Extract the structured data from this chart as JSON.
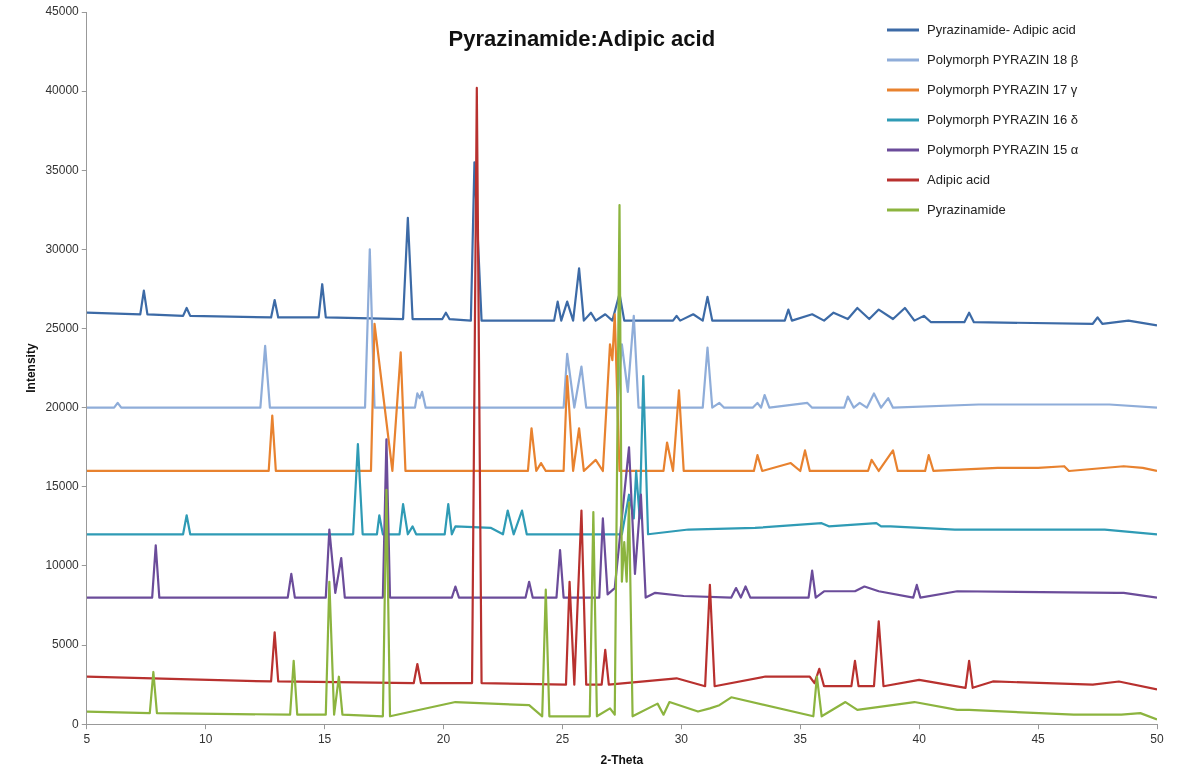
{
  "chart_data": {
    "type": "line",
    "title": "Pyrazinamide:Adipic acid",
    "xlabel": "2-Theta",
    "ylabel": "Intensity",
    "xlim": [
      5,
      50
    ],
    "xticks": [
      5,
      10,
      15,
      20,
      25,
      30,
      35,
      40,
      45,
      50
    ],
    "ylim": [
      0,
      45000
    ],
    "yticks": [
      0,
      5000,
      10000,
      15000,
      20000,
      25000,
      30000,
      35000,
      40000,
      45000
    ],
    "grid": false,
    "legend": "top right",
    "marker": "none",
    "line_style": "solid",
    "series": [
      {
        "name": "Pyrazinamide- Adipic acid",
        "color": "#3c6aa6",
        "x": [
          5,
          7.25,
          7.4,
          7.55,
          9.05,
          9.2,
          9.35,
          12.75,
          12.9,
          13.05,
          14.75,
          14.9,
          15.05,
          18.3,
          18.5,
          18.7,
          19.95,
          20.1,
          20.25,
          21.15,
          21.3,
          21.6,
          24.65,
          24.8,
          24.95,
          25.2,
          25.45,
          25.7,
          25.9,
          26.2,
          26.4,
          26.8,
          27.1,
          27.4,
          27.6,
          29.65,
          29.8,
          29.95,
          30.5,
          30.9,
          31.1,
          31.3,
          34.35,
          34.5,
          34.65,
          35.5,
          36.0,
          36.4,
          37.0,
          37.4,
          37.9,
          38.3,
          38.9,
          39.4,
          39.8,
          40.2,
          40.5,
          41.9,
          42.1,
          42.3,
          47.3,
          47.5,
          47.7,
          48.8,
          50
        ],
        "values": [
          26000,
          25900,
          27400,
          25900,
          25800,
          26300,
          25800,
          25700,
          26800,
          25700,
          25700,
          27800,
          25700,
          25600,
          32000,
          25600,
          25600,
          26000,
          25600,
          25500,
          35500,
          25500,
          25500,
          26700,
          25500,
          26700,
          25500,
          28800,
          25500,
          26000,
          25500,
          25900,
          25500,
          27200,
          25500,
          25500,
          25800,
          25500,
          25900,
          25500,
          27000,
          25500,
          25500,
          26200,
          25500,
          25900,
          25500,
          26000,
          25600,
          26300,
          25600,
          26200,
          25600,
          26300,
          25500,
          25800,
          25400,
          25400,
          26000,
          25400,
          25300,
          25700,
          25300,
          25500,
          25200
        ]
      },
      {
        "name": "Polymorph PYRAZIN 18 β",
        "color": "#8fadd9",
        "x": [
          5,
          6.15,
          6.3,
          6.45,
          12.3,
          12.5,
          12.7,
          16.7,
          16.9,
          17.1,
          18.8,
          18.9,
          19.0,
          19.1,
          19.25,
          25.05,
          25.2,
          25.5,
          25.8,
          26.0,
          27.3,
          27.5,
          27.75,
          28.0,
          28.2,
          30.9,
          31.1,
          31.3,
          31.6,
          31.8,
          33.0,
          33.2,
          33.35,
          33.5,
          33.7,
          35.3,
          35.5,
          36.85,
          37.0,
          37.25,
          37.5,
          37.8,
          38.1,
          38.4,
          38.7,
          38.9,
          42.5,
          46.9,
          48.0,
          50
        ],
        "values": [
          20000,
          20000,
          20300,
          20000,
          20000,
          23900,
          20000,
          20000,
          30000,
          20000,
          20000,
          20900,
          20600,
          21000,
          20000,
          20000,
          23400,
          20000,
          22600,
          20000,
          20000,
          24000,
          21000,
          25800,
          20000,
          20000,
          23800,
          20000,
          20300,
          20000,
          20000,
          20300,
          20000,
          20800,
          20000,
          20300,
          20000,
          20000,
          20700,
          20000,
          20300,
          20000,
          20900,
          20000,
          20600,
          20000,
          20200,
          20200,
          20200,
          20000
        ]
      },
      {
        "name": "Polymorph PYRAZIN 17 γ",
        "color": "#e8822f",
        "x": [
          5,
          12.65,
          12.8,
          12.95,
          16.95,
          17.1,
          17.85,
          18.2,
          18.4,
          23.55,
          23.7,
          23.9,
          24.1,
          24.3,
          25.05,
          25.2,
          25.45,
          25.7,
          25.9,
          26.4,
          26.7,
          27.0,
          27.1,
          27.2,
          27.4,
          29.25,
          29.4,
          29.65,
          29.9,
          30.1,
          33.05,
          33.2,
          33.4,
          34.6,
          35.0,
          35.2,
          35.4,
          37.85,
          38.0,
          38.3,
          38.9,
          39.1,
          40.25,
          40.4,
          40.6,
          43.3,
          45.0,
          46.1,
          46.3,
          48.6,
          49.4,
          50
        ],
        "values": [
          16000,
          16000,
          19500,
          16000,
          16000,
          25300,
          16000,
          23500,
          16000,
          16000,
          18700,
          16000,
          16500,
          16000,
          16000,
          22000,
          16000,
          18700,
          16000,
          16700,
          16000,
          24000,
          23000,
          25900,
          16000,
          16000,
          17800,
          16000,
          21100,
          16000,
          16000,
          17000,
          16000,
          16500,
          16000,
          17300,
          16000,
          16000,
          16700,
          16000,
          17300,
          16000,
          16000,
          17000,
          16000,
          16200,
          16200,
          16300,
          16000,
          16300,
          16200,
          16000
        ]
      },
      {
        "name": "Polymorph PYRAZIN 16 δ",
        "color": "#2f9bb5",
        "x": [
          5,
          9.05,
          9.2,
          9.35,
          16.2,
          16.4,
          16.6,
          17.2,
          17.3,
          17.45,
          18.15,
          18.3,
          18.5,
          18.7,
          18.85,
          20.05,
          20.2,
          20.35,
          20.5,
          22.0,
          22.5,
          22.7,
          22.95,
          23.3,
          23.5,
          27.5,
          27.8,
          28.0,
          28.1,
          28.25,
          28.4,
          28.6,
          30.3,
          33.1,
          35.9,
          36.2,
          38.2,
          38.4,
          38.8,
          41.5,
          47.8,
          50
        ],
        "values": [
          12000,
          12000,
          13200,
          12000,
          12000,
          17700,
          12000,
          12000,
          13200,
          12000,
          12000,
          13900,
          12000,
          12500,
          12000,
          12000,
          13900,
          12000,
          12500,
          12400,
          12000,
          13500,
          12000,
          13500,
          12000,
          12000,
          14500,
          13000,
          16000,
          13000,
          22000,
          12000,
          12300,
          12400,
          12700,
          12500,
          12700,
          12500,
          12500,
          12300,
          12300,
          12000
        ]
      },
      {
        "name": "Polymorph PYRAZIN 15 α",
        "color": "#6b4c9a",
        "x": [
          5,
          7.75,
          7.9,
          8.05,
          13.45,
          13.6,
          13.75,
          15.05,
          15.2,
          15.45,
          15.7,
          15.85,
          17.45,
          17.6,
          17.75,
          20.35,
          20.5,
          20.65,
          23.45,
          23.6,
          23.75,
          24.75,
          24.9,
          25.05,
          26.55,
          26.7,
          26.9,
          27.2,
          27.8,
          28.05,
          28.3,
          28.5,
          28.9,
          30.1,
          32.1,
          32.3,
          32.5,
          32.7,
          32.9,
          35.35,
          35.5,
          35.65,
          36.0,
          37.3,
          37.7,
          38.3,
          39.75,
          39.9,
          40.05,
          41.6,
          48.3,
          48.6,
          50
        ],
        "values": [
          8000,
          8000,
          11300,
          8000,
          8000,
          9500,
          8000,
          8000,
          12300,
          8300,
          10500,
          8000,
          8000,
          18000,
          8000,
          8000,
          8700,
          8000,
          8000,
          9000,
          8000,
          8000,
          11000,
          8000,
          8000,
          13000,
          8200,
          8600,
          17500,
          9500,
          14500,
          8000,
          8300,
          8100,
          8000,
          8600,
          8000,
          8700,
          8000,
          8000,
          9700,
          8000,
          8400,
          8400,
          8700,
          8400,
          8000,
          8800,
          8000,
          8400,
          8300,
          8300,
          8000
        ]
      },
      {
        "name": "Adipic acid",
        "color": "#b8312f",
        "x": [
          5,
          12.75,
          12.9,
          13.05,
          18.75,
          18.9,
          19.05,
          21.2,
          21.4,
          21.6,
          25.15,
          25.3,
          25.5,
          25.8,
          26.0,
          26.65,
          26.8,
          26.95,
          29.8,
          31.0,
          31.2,
          31.4,
          33.5,
          35.4,
          35.6,
          35.8,
          36.0,
          37.15,
          37.3,
          37.45,
          38.1,
          38.3,
          38.5,
          40.0,
          41.95,
          42.1,
          42.25,
          43.1,
          47.3,
          48.4,
          50
        ],
        "values": [
          3000,
          2700,
          5800,
          2700,
          2600,
          3800,
          2600,
          2600,
          40200,
          2600,
          2500,
          9000,
          2500,
          13500,
          2500,
          2500,
          4700,
          2500,
          2900,
          2400,
          8800,
          2400,
          3000,
          3000,
          2600,
          3500,
          2400,
          2400,
          4000,
          2400,
          2400,
          6500,
          2400,
          2800,
          2300,
          4000,
          2300,
          2700,
          2500,
          2700,
          2200
        ]
      },
      {
        "name": "Pyrazinamide",
        "color": "#8cb43f",
        "x": [
          5,
          7.65,
          7.8,
          7.95,
          13.55,
          13.7,
          13.85,
          15.05,
          15.2,
          15.4,
          15.6,
          15.75,
          17.45,
          17.6,
          17.75,
          20.5,
          23.6,
          24.15,
          24.3,
          24.45,
          26.15,
          26.3,
          26.45,
          27.0,
          27.2,
          27.4,
          27.5,
          27.6,
          27.7,
          27.8,
          27.95,
          29.0,
          29.25,
          29.5,
          30.7,
          31.2,
          31.6,
          32.1,
          35.55,
          35.7,
          35.9,
          36.9,
          37.4,
          39.8,
          41.6,
          42.1,
          46.5,
          48.5,
          49.3,
          50
        ],
        "values": [
          800,
          700,
          3300,
          700,
          600,
          4000,
          600,
          600,
          9000,
          600,
          3000,
          600,
          500,
          14800,
          500,
          1400,
          1200,
          500,
          8500,
          500,
          500,
          13400,
          500,
          1000,
          600,
          32800,
          9000,
          11500,
          9000,
          14000,
          500,
          1300,
          600,
          1400,
          800,
          1000,
          1200,
          1700,
          500,
          3000,
          500,
          1400,
          900,
          1400,
          900,
          900,
          600,
          600,
          700,
          300
        ]
      }
    ]
  }
}
